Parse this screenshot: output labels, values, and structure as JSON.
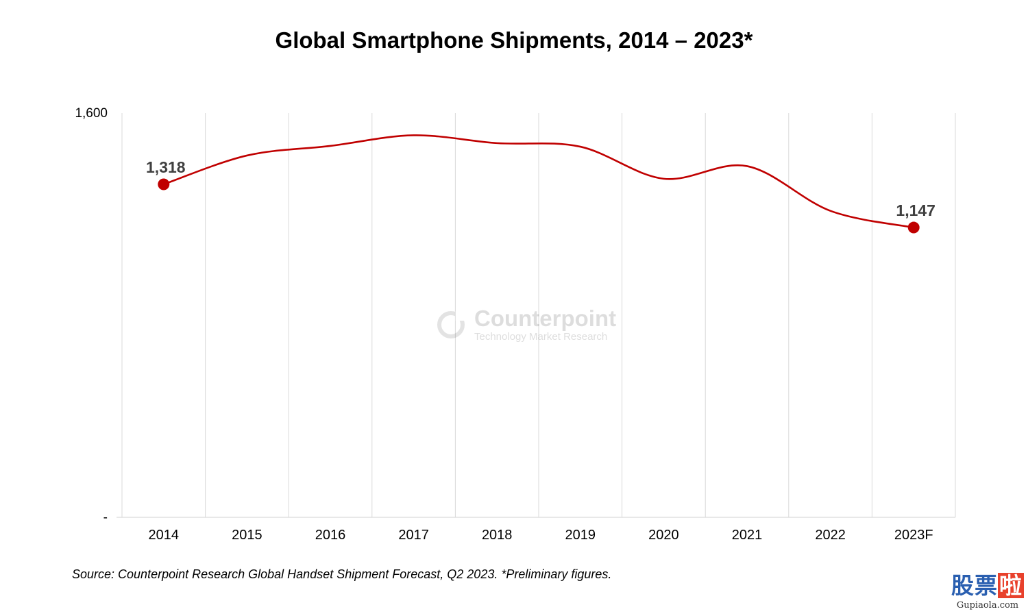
{
  "chart_data": {
    "type": "line",
    "title": "Global Smartphone Shipments, 2014 – 2023*",
    "categories": [
      "2014",
      "2015",
      "2016",
      "2017",
      "2018",
      "2019",
      "2020",
      "2021",
      "2022",
      "2023F"
    ],
    "series": [
      {
        "values": [
          1318,
          1432,
          1470,
          1512,
          1481,
          1467,
          1340,
          1390,
          1213,
          1147
        ],
        "color": "#c00000"
      }
    ],
    "data_labels": [
      {
        "index": 0,
        "text": "1,318"
      },
      {
        "index": 9,
        "text": "1,147"
      }
    ],
    "y_ticks": [
      {
        "value": 1600,
        "label": "1,600"
      },
      {
        "value": 0,
        "label": "-"
      }
    ],
    "ylim": [
      0,
      1600
    ],
    "grid": "vertical",
    "source": "Source:  Counterpoint Research Global Handset Shipment Forecast, Q2 2023. *Preliminary figures."
  },
  "watermark": {
    "name": "Counterpoint",
    "tagline": "Technology Market Research",
    "icon": "counterpoint-ring-icon"
  },
  "corner_logo": {
    "cn_a": "股票",
    "cn_b": "啦",
    "url": "Gupiaola.com"
  },
  "colors": {
    "line": "#c00000",
    "grid": "#d9d9d9"
  }
}
